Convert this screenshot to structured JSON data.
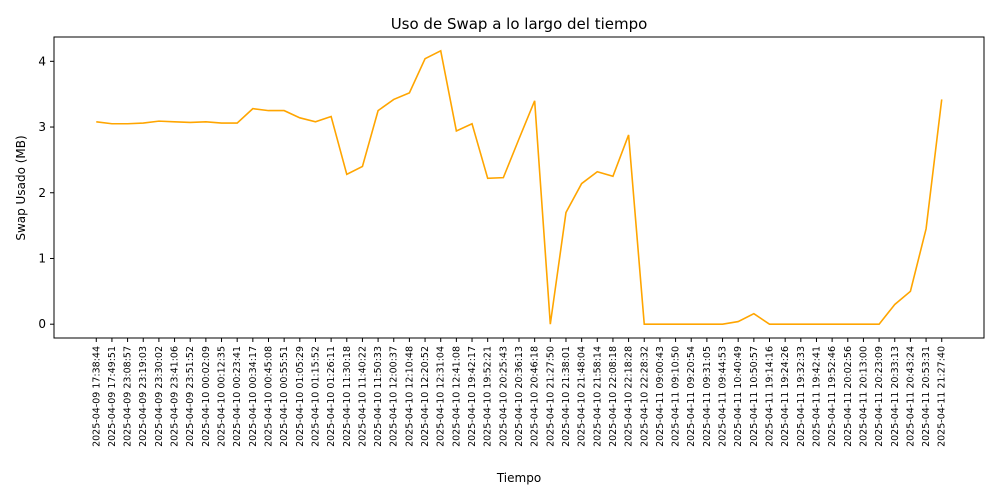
{
  "chart_data": {
    "type": "line",
    "title": "Uso de Swap a lo largo del tiempo",
    "x_label": "Tiempo",
    "y_label": "Swap Usado (MB)",
    "categories": [
      "2025-04-09 17:38:44",
      "2025-04-09 17:49:51",
      "2025-04-09 23:08:57",
      "2025-04-09 23:19:03",
      "2025-04-09 23:30:02",
      "2025-04-09 23:41:06",
      "2025-04-09 23:51:52",
      "2025-04-10 00:02:09",
      "2025-04-10 00:12:35",
      "2025-04-10 00:23:41",
      "2025-04-10 00:34:17",
      "2025-04-10 00:45:08",
      "2025-04-10 00:55:51",
      "2025-04-10 01:05:29",
      "2025-04-10 01:15:52",
      "2025-04-10 01:26:11",
      "2025-04-10 11:30:18",
      "2025-04-10 11:40:22",
      "2025-04-10 11:50:33",
      "2025-04-10 12:00:37",
      "2025-04-10 12:10:48",
      "2025-04-10 12:20:52",
      "2025-04-10 12:31:04",
      "2025-04-10 12:41:08",
      "2025-04-10 19:42:17",
      "2025-04-10 19:52:21",
      "2025-04-10 20:25:43",
      "2025-04-10 20:36:13",
      "2025-04-10 20:46:18",
      "2025-04-10 21:27:50",
      "2025-04-10 21:38:01",
      "2025-04-10 21:48:04",
      "2025-04-10 21:58:14",
      "2025-04-10 22:08:18",
      "2025-04-10 22:18:28",
      "2025-04-10 22:28:32",
      "2025-04-11 09:00:43",
      "2025-04-11 09:10:50",
      "2025-04-11 09:20:54",
      "2025-04-11 09:31:05",
      "2025-04-11 09:44:53",
      "2025-04-11 10:40:49",
      "2025-04-11 10:50:57",
      "2025-04-11 19:14:16",
      "2025-04-11 19:24:26",
      "2025-04-11 19:32:33",
      "2025-04-11 19:42:41",
      "2025-04-11 19:52:46",
      "2025-04-11 20:02:56",
      "2025-04-11 20:13:00",
      "2025-04-11 20:23:09",
      "2025-04-11 20:33:13",
      "2025-04-11 20:43:24",
      "2025-04-11 20:53:31",
      "2025-04-11 21:27:40"
    ],
    "values": [
      3.08,
      3.05,
      3.05,
      3.06,
      3.09,
      3.08,
      3.07,
      3.08,
      3.06,
      3.06,
      3.28,
      3.25,
      3.25,
      3.14,
      3.08,
      3.16,
      2.28,
      2.4,
      3.25,
      3.42,
      3.52,
      4.04,
      4.16,
      2.94,
      3.05,
      2.22,
      2.23,
      2.82,
      3.4,
      0,
      1.7,
      2.14,
      2.32,
      2.25,
      2.88,
      0,
      0,
      0,
      0,
      0,
      0,
      0.04,
      0.16,
      0,
      0,
      0,
      0,
      0,
      0,
      0,
      0,
      0.3,
      0.5,
      1.45,
      3.42
    ],
    "color": "#ffa500",
    "ylim": [
      -0.21,
      4.37
    ],
    "yticks": [
      0,
      1,
      2,
      3,
      4
    ],
    "grid": false
  }
}
